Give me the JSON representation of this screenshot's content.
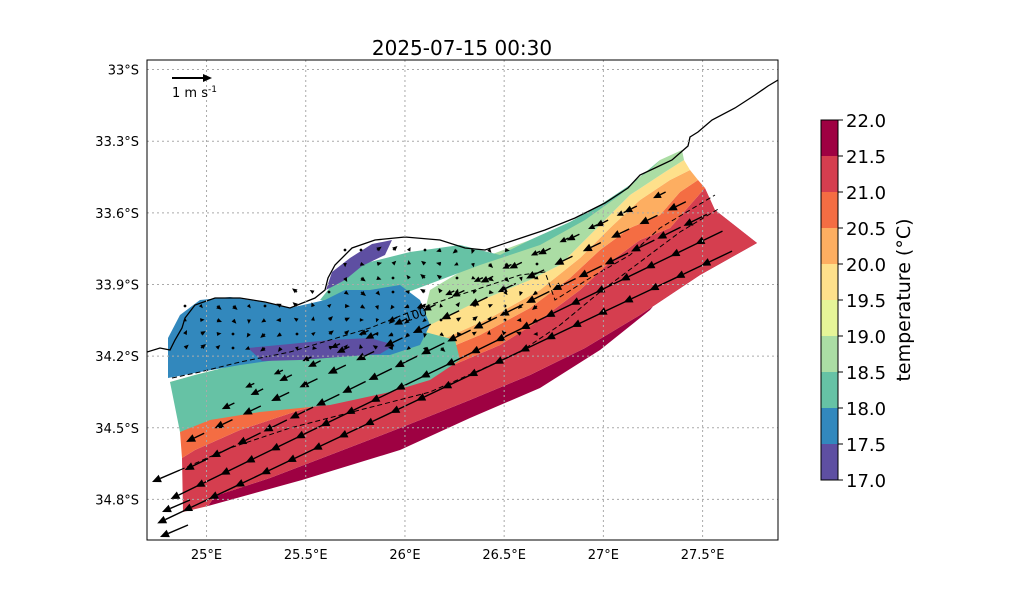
{
  "figure": {
    "title": "2025-07-15 00:30"
  },
  "map": {
    "lon_ticks": [
      "25°E",
      "25.5°E",
      "26°E",
      "26.5°E",
      "27°E",
      "27.5°E"
    ],
    "lat_ticks": [
      "33°S",
      "33.3°S",
      "33.6°S",
      "33.9°S",
      "34.2°S",
      "34.5°S",
      "34.8°S"
    ],
    "lon_values": [
      25.0,
      25.5,
      26.0,
      26.5,
      27.0,
      27.5
    ],
    "lat_values": [
      -33.0,
      -33.3,
      -33.6,
      -33.9,
      -34.2,
      -34.5,
      -34.8
    ],
    "lon_range": [
      24.7,
      27.88
    ],
    "lat_range": [
      -34.97,
      -32.96
    ],
    "grid": true,
    "contour_label": "100",
    "quiver_key": {
      "label": "1 m s",
      "exponent": "-1",
      "speed": 1
    }
  },
  "colorbar": {
    "label": "temperature (°C)",
    "ticks": [
      "22.0",
      "21.5",
      "21.0",
      "20.5",
      "20.0",
      "19.5",
      "19.0",
      "18.5",
      "18.0",
      "17.5",
      "17.0"
    ],
    "colors": [
      "#9e0142",
      "#d53e4f",
      "#f46d43",
      "#fdae61",
      "#fee08b",
      "#e6f598",
      "#abdda4",
      "#66c2a5",
      "#3288bd",
      "#5e4fa2"
    ],
    "range": [
      17.0,
      22.0
    ]
  }
}
